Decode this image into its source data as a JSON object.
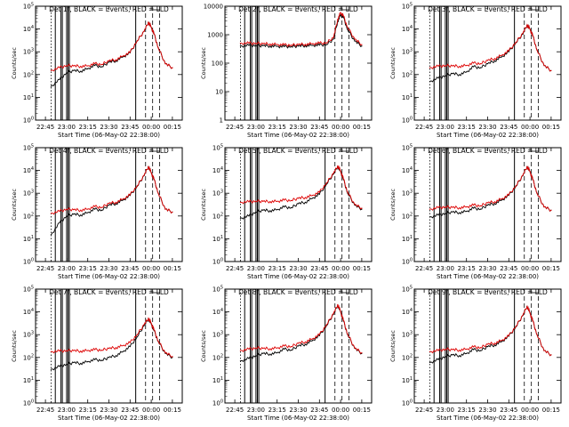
{
  "colors": {
    "events": "#000000",
    "lld": "#dd0000",
    "axes": "#000000",
    "background": "#ffffff"
  },
  "chart_data": [
    {
      "type": "line",
      "title": "Det 1f, BLACK = Events, RED = LLD",
      "xlabel": "Start Time (06-May-02 22:38:00)",
      "ylabel": "Counts/sec",
      "x_tick_labels": [
        "22:45",
        "23:00",
        "23:15",
        "23:30",
        "23:45",
        "00:00",
        "00:15"
      ],
      "xlim": [
        "22:38",
        "00:22"
      ],
      "y_scale": "log",
      "ylim": [
        1,
        100000
      ],
      "y_tick_labels": [
        "10^0",
        "10^1",
        "10^2",
        "10^3",
        "10^4",
        "10^5"
      ],
      "x": [
        "22:49",
        "22:55",
        "23:00",
        "23:05",
        "23:10",
        "23:15",
        "23:20",
        "23:25",
        "23:30",
        "23:35",
        "23:40",
        "23:45",
        "23:50",
        "23:55",
        "23:58",
        "00:00",
        "00:02",
        "00:05",
        "00:10",
        "00:15"
      ],
      "series": [
        {
          "name": "Events",
          "color": "#000000",
          "values": [
            30,
            60,
            120,
            150,
            140,
            180,
            250,
            220,
            350,
            400,
            600,
            900,
            3000,
            8000,
            20000,
            12000,
            6000,
            1500,
            300,
            200
          ]
        },
        {
          "name": "LLD",
          "color": "#dd0000",
          "values": [
            150,
            200,
            250,
            240,
            230,
            240,
            300,
            280,
            400,
            450,
            650,
            950,
            3000,
            8000,
            20000,
            12000,
            6000,
            1500,
            300,
            200
          ]
        }
      ]
    },
    {
      "type": "line",
      "title": "Det 2f, BLACK = Events, RED = LLD",
      "xlabel": "Start Time (06-May-02 22:38:00)",
      "ylabel": "Counts/sec",
      "x_tick_labels": [
        "22:45",
        "23:00",
        "23:15",
        "23:30",
        "23:45",
        "00:00",
        "00:15"
      ],
      "xlim": [
        "22:38",
        "00:22"
      ],
      "y_scale": "log",
      "ylim": [
        1,
        10000
      ],
      "y_tick_labels": [
        "1",
        "10",
        "100",
        "1000",
        "10000"
      ],
      "x": [
        "22:49",
        "22:55",
        "23:00",
        "23:05",
        "23:10",
        "23:15",
        "23:20",
        "23:25",
        "23:30",
        "23:35",
        "23:40",
        "23:45",
        "23:50",
        "23:55",
        "23:58",
        "00:00",
        "00:02",
        "00:05",
        "00:10",
        "00:15"
      ],
      "series": [
        {
          "name": "Events",
          "color": "#000000",
          "values": [
            400,
            420,
            420,
            410,
            400,
            390,
            380,
            380,
            400,
            410,
            420,
            430,
            450,
            700,
            3000,
            5000,
            4000,
            1500,
            600,
            400
          ]
        },
        {
          "name": "LLD",
          "color": "#dd0000",
          "values": [
            500,
            500,
            500,
            480,
            470,
            450,
            440,
            430,
            450,
            460,
            480,
            500,
            520,
            800,
            3500,
            6000,
            4500,
            1800,
            700,
            450
          ]
        }
      ]
    },
    {
      "type": "line",
      "title": "Det 3f, BLACK = Events, RED = LLD",
      "xlabel": "Start Time (06-May-02 22:38:00)",
      "ylabel": "Counts/sec",
      "x_tick_labels": [
        "22:45",
        "23:00",
        "23:15",
        "23:30",
        "23:45",
        "00:00",
        "00:15"
      ],
      "xlim": [
        "22:38",
        "00:22"
      ],
      "y_scale": "log",
      "ylim": [
        1,
        100000
      ],
      "y_tick_labels": [
        "10^0",
        "10^1",
        "10^2",
        "10^3",
        "10^4",
        "10^5"
      ],
      "x": [
        "22:49",
        "22:55",
        "23:00",
        "23:05",
        "23:10",
        "23:15",
        "23:20",
        "23:25",
        "23:30",
        "23:35",
        "23:40",
        "23:45",
        "23:50",
        "23:55",
        "23:58",
        "00:00",
        "00:02",
        "00:05",
        "00:10",
        "00:15"
      ],
      "series": [
        {
          "name": "Events",
          "color": "#000000",
          "values": [
            50,
            70,
            90,
            110,
            100,
            130,
            220,
            200,
            300,
            400,
            600,
            1000,
            2500,
            6000,
            15000,
            10000,
            5000,
            1200,
            250,
            150
          ]
        },
        {
          "name": "LLD",
          "color": "#dd0000",
          "values": [
            200,
            230,
            250,
            240,
            230,
            250,
            320,
            300,
            420,
            500,
            700,
            1100,
            2600,
            6500,
            15000,
            10000,
            5000,
            1200,
            250,
            150
          ]
        }
      ]
    },
    {
      "type": "line",
      "title": "Det 4f, BLACK = Events, RED = LLD",
      "xlabel": "Start Time (06-May-02 22:38:00)",
      "ylabel": "Counts/sec",
      "x_tick_labels": [
        "22:45",
        "23:00",
        "23:15",
        "23:30",
        "23:45",
        "00:00",
        "00:15"
      ],
      "xlim": [
        "22:38",
        "00:22"
      ],
      "y_scale": "log",
      "ylim": [
        1,
        100000
      ],
      "y_tick_labels": [
        "10^0",
        "10^1",
        "10^2",
        "10^3",
        "10^4",
        "10^5"
      ],
      "x": [
        "22:49",
        "22:55",
        "23:00",
        "23:05",
        "23:10",
        "23:15",
        "23:20",
        "23:25",
        "23:30",
        "23:35",
        "23:40",
        "23:45",
        "23:50",
        "23:55",
        "23:58",
        "00:00",
        "00:02",
        "00:05",
        "00:10",
        "00:15"
      ],
      "series": [
        {
          "name": "Events",
          "color": "#000000",
          "values": [
            15,
            50,
            100,
            120,
            110,
            140,
            200,
            180,
            300,
            350,
            500,
            800,
            2000,
            6000,
            15000,
            8000,
            4000,
            1000,
            200,
            150
          ]
        },
        {
          "name": "LLD",
          "color": "#dd0000",
          "values": [
            130,
            160,
            200,
            190,
            180,
            200,
            260,
            240,
            360,
            400,
            550,
            850,
            2100,
            6200,
            15000,
            8000,
            4000,
            1000,
            200,
            150
          ]
        }
      ]
    },
    {
      "type": "line",
      "title": "Det 5f, BLACK = Events, RED = LLD",
      "xlabel": "Start Time (06-May-02 22:38:00)",
      "ylabel": "Counts/sec",
      "x_tick_labels": [
        "22:45",
        "23:00",
        "23:15",
        "23:30",
        "23:45",
        "00:00",
        "00:15"
      ],
      "xlim": [
        "22:38",
        "00:22"
      ],
      "y_scale": "log",
      "ylim": [
        1,
        100000
      ],
      "y_tick_labels": [
        "10^0",
        "10^1",
        "10^2",
        "10^3",
        "10^4",
        "10^5"
      ],
      "x": [
        "22:49",
        "22:55",
        "23:00",
        "23:05",
        "23:10",
        "23:15",
        "23:20",
        "23:25",
        "23:30",
        "23:35",
        "23:40",
        "23:45",
        "23:50",
        "23:55",
        "23:58",
        "00:00",
        "00:02",
        "00:05",
        "00:10",
        "00:15"
      ],
      "series": [
        {
          "name": "Events",
          "color": "#000000",
          "values": [
            80,
            100,
            150,
            180,
            170,
            190,
            250,
            230,
            350,
            400,
            600,
            900,
            2500,
            7000,
            15000,
            9000,
            4000,
            1000,
            300,
            200
          ]
        },
        {
          "name": "LLD",
          "color": "#dd0000",
          "values": [
            400,
            420,
            450,
            440,
            430,
            440,
            500,
            480,
            600,
            650,
            800,
            1100,
            2800,
            7500,
            16000,
            9500,
            4200,
            1100,
            320,
            220
          ]
        }
      ]
    },
    {
      "type": "line",
      "title": "Det 6f, BLACK = Events, RED = LLD",
      "xlabel": "Start Time (06-May-02 22:38:00)",
      "ylabel": "Counts/sec",
      "x_tick_labels": [
        "22:45",
        "23:00",
        "23:15",
        "23:30",
        "23:45",
        "00:00",
        "00:15"
      ],
      "xlim": [
        "22:38",
        "00:22"
      ],
      "y_scale": "log",
      "ylim": [
        1,
        100000
      ],
      "y_tick_labels": [
        "10^0",
        "10^1",
        "10^2",
        "10^3",
        "10^4",
        "10^5"
      ],
      "x": [
        "22:49",
        "22:55",
        "23:00",
        "23:05",
        "23:10",
        "23:15",
        "23:20",
        "23:25",
        "23:30",
        "23:35",
        "23:40",
        "23:45",
        "23:50",
        "23:55",
        "23:58",
        "00:00",
        "00:02",
        "00:05",
        "00:10",
        "00:15"
      ],
      "series": [
        {
          "name": "Events",
          "color": "#000000",
          "values": [
            90,
            110,
            130,
            150,
            140,
            160,
            220,
            200,
            300,
            350,
            500,
            800,
            2000,
            6000,
            15000,
            9000,
            4000,
            1000,
            250,
            180
          ]
        },
        {
          "name": "LLD",
          "color": "#dd0000",
          "values": [
            200,
            230,
            250,
            240,
            230,
            250,
            300,
            280,
            380,
            420,
            560,
            850,
            2100,
            6200,
            15000,
            9000,
            4000,
            1000,
            250,
            180
          ]
        }
      ]
    },
    {
      "type": "line",
      "title": "Det 7f, BLACK = Events, RED = LLD",
      "xlabel": "Start Time (06-May-02 22:38:00)",
      "ylabel": "Counts/sec",
      "x_tick_labels": [
        "22:45",
        "23:00",
        "23:15",
        "23:30",
        "23:45",
        "00:00",
        "00:15"
      ],
      "xlim": [
        "22:38",
        "00:22"
      ],
      "y_scale": "log",
      "ylim": [
        1,
        100000
      ],
      "y_tick_labels": [
        "10^0",
        "10^1",
        "10^2",
        "10^3",
        "10^4",
        "10^5"
      ],
      "x": [
        "22:49",
        "22:55",
        "23:00",
        "23:05",
        "23:10",
        "23:15",
        "23:20",
        "23:25",
        "23:30",
        "23:35",
        "23:40",
        "23:45",
        "23:50",
        "23:55",
        "23:58",
        "00:00",
        "00:02",
        "00:05",
        "00:10",
        "00:15"
      ],
      "series": [
        {
          "name": "Events",
          "color": "#000000",
          "values": [
            30,
            40,
            50,
            60,
            55,
            65,
            80,
            75,
            100,
            120,
            180,
            300,
            800,
            2500,
            5000,
            3000,
            1500,
            500,
            150,
            100
          ]
        },
        {
          "name": "LLD",
          "color": "#dd0000",
          "values": [
            180,
            190,
            200,
            200,
            190,
            200,
            220,
            210,
            250,
            270,
            330,
            450,
            1000,
            2800,
            5200,
            3200,
            1600,
            520,
            160,
            110
          ]
        }
      ]
    },
    {
      "type": "line",
      "title": "Det 8f, BLACK = Events, RED = LLD",
      "xlabel": "Start Time (06-May-02 22:38:00)",
      "ylabel": "Counts/sec",
      "x_tick_labels": [
        "22:45",
        "23:00",
        "23:15",
        "23:30",
        "23:45",
        "00:00",
        "00:15"
      ],
      "xlim": [
        "22:38",
        "00:22"
      ],
      "y_scale": "log",
      "ylim": [
        1,
        100000
      ],
      "y_tick_labels": [
        "10^0",
        "10^1",
        "10^2",
        "10^3",
        "10^4",
        "10^5"
      ],
      "x": [
        "22:49",
        "22:55",
        "23:00",
        "23:05",
        "23:10",
        "23:15",
        "23:20",
        "23:25",
        "23:30",
        "23:35",
        "23:40",
        "23:45",
        "23:50",
        "23:55",
        "23:58",
        "00:00",
        "00:02",
        "00:05",
        "00:10",
        "00:15"
      ],
      "series": [
        {
          "name": "Events",
          "color": "#000000",
          "values": [
            70,
            90,
            120,
            150,
            140,
            160,
            230,
            210,
            320,
            380,
            550,
            900,
            2500,
            8000,
            20000,
            10000,
            4000,
            1000,
            250,
            150
          ]
        },
        {
          "name": "LLD",
          "color": "#dd0000",
          "values": [
            200,
            230,
            260,
            250,
            240,
            260,
            320,
            300,
            420,
            480,
            650,
            1000,
            2700,
            8500,
            21000,
            10500,
            4200,
            1050,
            260,
            160
          ]
        }
      ]
    },
    {
      "type": "line",
      "title": "Det 9f, BLACK = Events, RED = LLD",
      "xlabel": "Start Time (06-May-02 22:38:00)",
      "ylabel": "Counts/sec",
      "x_tick_labels": [
        "22:45",
        "23:00",
        "23:15",
        "23:30",
        "23:45",
        "00:00",
        "00:15"
      ],
      "xlim": [
        "22:38",
        "00:22"
      ],
      "y_scale": "log",
      "ylim": [
        1,
        100000
      ],
      "y_tick_labels": [
        "10^0",
        "10^1",
        "10^2",
        "10^3",
        "10^4",
        "10^5"
      ],
      "x": [
        "22:49",
        "22:55",
        "23:00",
        "23:05",
        "23:10",
        "23:15",
        "23:20",
        "23:25",
        "23:30",
        "23:35",
        "23:40",
        "23:45",
        "23:50",
        "23:55",
        "23:58",
        "00:00",
        "00:02",
        "00:05",
        "00:10",
        "00:15"
      ],
      "series": [
        {
          "name": "Events",
          "color": "#000000",
          "values": [
            60,
            80,
            110,
            130,
            120,
            150,
            220,
            200,
            300,
            350,
            500,
            850,
            2200,
            7000,
            18000,
            9000,
            4000,
            1000,
            200,
            130
          ]
        },
        {
          "name": "LLD",
          "color": "#dd0000",
          "values": [
            180,
            200,
            230,
            220,
            210,
            230,
            290,
            270,
            380,
            420,
            560,
            900,
            2300,
            7200,
            18000,
            9000,
            4000,
            1000,
            200,
            130
          ]
        }
      ]
    }
  ]
}
